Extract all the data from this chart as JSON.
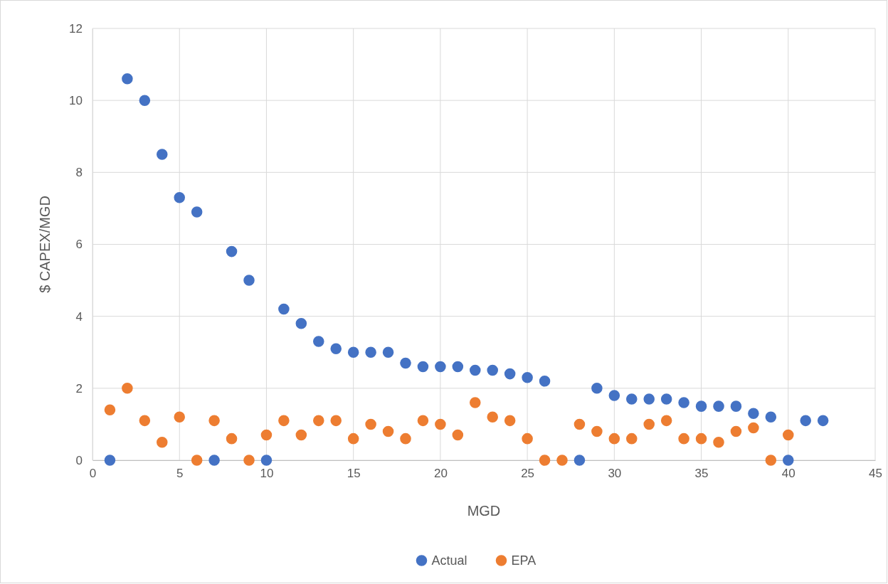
{
  "chart_data": {
    "type": "scatter",
    "xlabel": "MGD",
    "ylabel": "$ CAPEX/MGD",
    "xlim": [
      0,
      45
    ],
    "xticks": [
      0,
      5,
      10,
      15,
      20,
      25,
      30,
      35,
      40,
      45
    ],
    "ylim": [
      0,
      12
    ],
    "yticks": [
      0,
      2,
      4,
      6,
      8,
      10,
      12
    ],
    "grid": true,
    "legend": "bottom",
    "marker": "circle",
    "series": [
      {
        "name": "Actual",
        "color": "#4472c4",
        "x": [
          1,
          2,
          3,
          4,
          5,
          6,
          7,
          8,
          9,
          10,
          11,
          12,
          13,
          14,
          15,
          16,
          17,
          18,
          19,
          20,
          21,
          22,
          23,
          24,
          25,
          26,
          27,
          28,
          29,
          30,
          31,
          32,
          33,
          34,
          35,
          36,
          37,
          38,
          39,
          40,
          41,
          42
        ],
        "values": [
          0,
          10.6,
          10,
          8.5,
          7.3,
          6.9,
          0,
          5.8,
          5.0,
          0,
          4.2,
          3.8,
          3.3,
          3.1,
          3.0,
          3.0,
          3.0,
          2.7,
          2.6,
          2.6,
          2.6,
          2.5,
          2.5,
          2.4,
          2.3,
          2.2,
          null,
          0,
          2.0,
          1.8,
          1.7,
          1.7,
          1.7,
          1.6,
          1.5,
          1.5,
          1.5,
          1.3,
          1.2,
          0,
          1.1,
          1.1
        ]
      },
      {
        "name": "EPA",
        "color": "#ed7d31",
        "x": [
          1,
          2,
          3,
          4,
          5,
          6,
          7,
          8,
          9,
          10,
          11,
          12,
          13,
          14,
          15,
          16,
          17,
          18,
          19,
          20,
          21,
          22,
          23,
          24,
          25,
          26,
          27,
          28,
          29,
          30,
          31,
          32,
          33,
          34,
          35,
          36,
          37,
          38,
          39,
          40
        ],
        "values": [
          1.4,
          2.0,
          1.1,
          0.5,
          1.2,
          0,
          1.1,
          0.6,
          0,
          0.7,
          1.1,
          0.7,
          1.1,
          1.1,
          0.6,
          1.0,
          0.8,
          0.6,
          1.1,
          1.0,
          0.7,
          1.6,
          1.2,
          1.1,
          0.6,
          0,
          0,
          1.0,
          0.8,
          0.6,
          0.6,
          1.0,
          1.1,
          0.6,
          0.6,
          0.5,
          0.8,
          0.9,
          0,
          0.7
        ]
      }
    ]
  }
}
